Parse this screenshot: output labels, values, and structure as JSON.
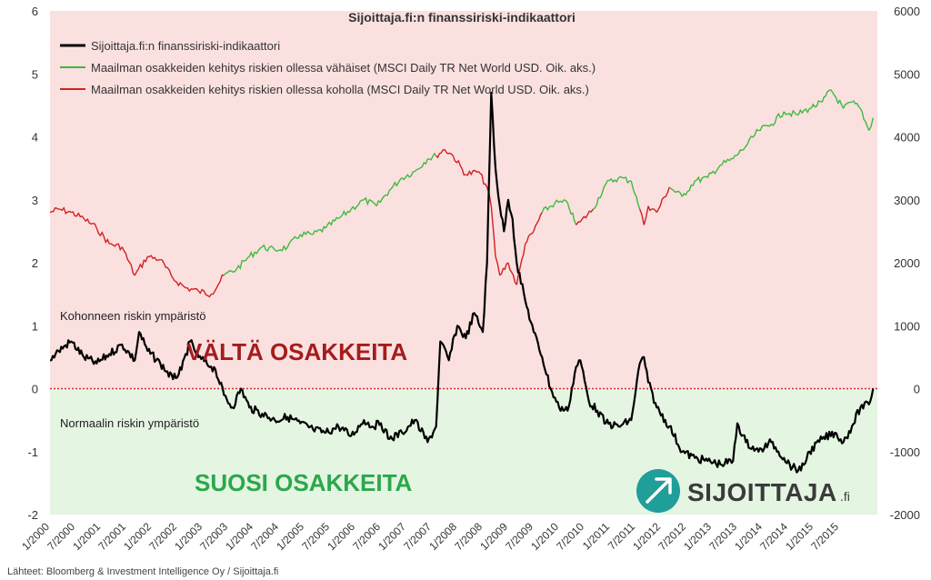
{
  "chart_data": {
    "type": "line",
    "title": "Sijoittaja.fi:n finanssiriski-indikaattori",
    "legend_position": "top-left",
    "grid": false,
    "x_ticks": [
      "1/2000",
      "7/2000",
      "1/2001",
      "7/2001",
      "1/2002",
      "7/2002",
      "1/2003",
      "7/2003",
      "1/2004",
      "7/2004",
      "1/2005",
      "7/2005",
      "1/2006",
      "7/2006",
      "1/2007",
      "7/2007",
      "1/2008",
      "7/2008",
      "1/2009",
      "7/2009",
      "1/2010",
      "7/2010",
      "1/2011",
      "7/2011",
      "1/2012",
      "7/2012",
      "1/2013",
      "7/2013",
      "1/2014",
      "7/2014",
      "1/2015",
      "7/2015"
    ],
    "xlim": [
      "2000-01",
      "2016-04"
    ],
    "y_left": {
      "ylim": [
        -2,
        6
      ],
      "ticks": [
        "-2",
        "-1",
        "0",
        "1",
        "2",
        "3",
        "4",
        "5",
        "6"
      ]
    },
    "y_right": {
      "ylim": [
        -2000,
        6000
      ],
      "ticks": [
        "-2000",
        "-1000",
        "0",
        "1000",
        "2000",
        "3000",
        "4000",
        "5000",
        "6000"
      ]
    },
    "zero_line": {
      "value": 0,
      "style": "dotted",
      "color": "#d03030"
    },
    "zones": [
      {
        "from": 0,
        "to": 6,
        "color": "#fbe0e0",
        "label": "Kohonneen riskin ympäristö",
        "big_label": "VÄLTÄ OSAKKEITA"
      },
      {
        "from": -2,
        "to": 0,
        "color": "#e4f5e2",
        "label": "Normaalin riskin ympäristö",
        "big_label": "SUOSI OSAKKEITA"
      }
    ],
    "series": [
      {
        "name": "Sijoittaja.fi:n finanssiriski-indikaattori",
        "color": "#000000",
        "axis": "left",
        "x": [
          "2000-01",
          "2000-03",
          "2000-06",
          "2000-09",
          "2000-12",
          "2001-03",
          "2001-06",
          "2001-09",
          "2001-10",
          "2001-12",
          "2002-03",
          "2002-06",
          "2002-08",
          "2002-10",
          "2002-12",
          "2003-03",
          "2003-04",
          "2003-06",
          "2003-08",
          "2003-10",
          "2003-12",
          "2004-03",
          "2004-06",
          "2004-09",
          "2004-12",
          "2005-03",
          "2005-06",
          "2005-09",
          "2005-12",
          "2006-03",
          "2006-05",
          "2006-07",
          "2006-09",
          "2006-12",
          "2007-03",
          "2007-06",
          "2007-08",
          "2007-09",
          "2007-11",
          "2008-01",
          "2008-03",
          "2008-05",
          "2008-07",
          "2008-08",
          "2008-09",
          "2008-10",
          "2008-11",
          "2008-12",
          "2009-01",
          "2009-02",
          "2009-03",
          "2009-05",
          "2009-07",
          "2009-09",
          "2009-11",
          "2010-01",
          "2010-03",
          "2010-05",
          "2010-06",
          "2010-08",
          "2010-10",
          "2010-12",
          "2011-03",
          "2011-06",
          "2011-08",
          "2011-09",
          "2011-10",
          "2011-12",
          "2012-03",
          "2012-06",
          "2012-09",
          "2012-12",
          "2013-03",
          "2013-06",
          "2013-07",
          "2013-09",
          "2013-12",
          "2014-03",
          "2014-06",
          "2014-08",
          "2014-10",
          "2014-12",
          "2015-03",
          "2015-06",
          "2015-08",
          "2015-10",
          "2015-12",
          "2016-02",
          "2016-03"
        ],
        "values": [
          0.45,
          0.6,
          0.75,
          0.5,
          0.4,
          0.55,
          0.7,
          0.45,
          0.9,
          0.6,
          0.4,
          0.15,
          0.3,
          0.75,
          0.5,
          0.35,
          0.3,
          -0.1,
          -0.3,
          0.0,
          -0.3,
          -0.4,
          -0.5,
          -0.45,
          -0.55,
          -0.65,
          -0.7,
          -0.6,
          -0.75,
          -0.5,
          -0.6,
          -0.55,
          -0.8,
          -0.7,
          -0.5,
          -0.85,
          -0.6,
          0.75,
          0.45,
          1.0,
          0.8,
          1.2,
          0.9,
          2.0,
          4.7,
          3.5,
          2.9,
          2.5,
          3.0,
          2.7,
          2.0,
          1.4,
          0.9,
          0.5,
          0.0,
          -0.3,
          -0.35,
          0.35,
          0.45,
          -0.2,
          -0.35,
          -0.55,
          -0.6,
          -0.5,
          0.4,
          0.5,
          0.1,
          -0.3,
          -0.6,
          -1.0,
          -1.1,
          -1.15,
          -1.2,
          -1.15,
          -0.55,
          -0.85,
          -1.0,
          -0.85,
          -1.1,
          -1.25,
          -1.3,
          -1.0,
          -0.8,
          -0.7,
          -0.85,
          -0.6,
          -0.3,
          -0.25,
          0.0
        ]
      },
      {
        "name": "Maailman osakkeiden kehitys riskien ollessa vähäiset (MSCI Daily TR Net World USD. Oik. aks.)",
        "color": "#3dbb3d",
        "axis": "right",
        "segments_by_regime": "green"
      },
      {
        "name": "Maailman osakkeiden kehitys riskien ollessa koholla (MSCI Daily TR Net World USD. Oik. aks.)",
        "color": "#d42020",
        "axis": "right",
        "segments_by_regime": "red"
      }
    ],
    "msci": {
      "x": [
        "2000-01",
        "2000-03",
        "2000-06",
        "2000-09",
        "2000-12",
        "2001-03",
        "2001-06",
        "2001-09",
        "2001-12",
        "2002-03",
        "2002-06",
        "2002-09",
        "2002-12",
        "2003-03",
        "2003-06",
        "2003-09",
        "2003-12",
        "2004-03",
        "2004-06",
        "2004-09",
        "2004-12",
        "2005-03",
        "2005-06",
        "2005-09",
        "2005-12",
        "2006-03",
        "2006-06",
        "2006-09",
        "2006-12",
        "2007-03",
        "2007-06",
        "2007-08",
        "2007-10",
        "2007-12",
        "2008-03",
        "2008-06",
        "2008-08",
        "2008-09",
        "2008-10",
        "2008-11",
        "2009-01",
        "2009-03",
        "2009-05",
        "2009-07",
        "2009-09",
        "2009-12",
        "2010-03",
        "2010-05",
        "2010-06",
        "2010-09",
        "2010-12",
        "2011-03",
        "2011-06",
        "2011-08",
        "2011-09",
        "2011-10",
        "2011-12",
        "2012-03",
        "2012-06",
        "2012-09",
        "2012-12",
        "2013-03",
        "2013-06",
        "2013-09",
        "2013-12",
        "2014-03",
        "2014-06",
        "2014-09",
        "2014-12",
        "2015-03",
        "2015-05",
        "2015-08",
        "2015-10",
        "2015-12",
        "2016-02",
        "2016-03"
      ],
      "values": [
        2800,
        2850,
        2800,
        2700,
        2550,
        2300,
        2250,
        1800,
        2100,
        2050,
        1750,
        1600,
        1550,
        1500,
        1800,
        1900,
        2100,
        2250,
        2200,
        2250,
        2450,
        2450,
        2550,
        2700,
        2850,
        3000,
        2900,
        3150,
        3350,
        3450,
        3650,
        3700,
        3800,
        3700,
        3400,
        3450,
        3200,
        2900,
        2100,
        1800,
        2000,
        1650,
        2300,
        2500,
        2800,
        2950,
        2950,
        2600,
        2650,
        2850,
        3250,
        3350,
        3300,
        2850,
        2600,
        2900,
        2800,
        3200,
        3050,
        3300,
        3350,
        3550,
        3650,
        3850,
        4100,
        4200,
        4400,
        4350,
        4450,
        4550,
        4750,
        4450,
        4550,
        4450,
        4100,
        4300
      ],
      "regime": [
        "red",
        "red",
        "red",
        "red",
        "red",
        "red",
        "red",
        "red",
        "red",
        "red",
        "red",
        "red",
        "red",
        "red",
        "green",
        "green",
        "green",
        "green",
        "green",
        "green",
        "green",
        "green",
        "green",
        "green",
        "green",
        "green",
        "green",
        "green",
        "green",
        "green",
        "green",
        "red",
        "red",
        "red",
        "red",
        "red",
        "red",
        "red",
        "red",
        "red",
        "red",
        "red",
        "red",
        "red",
        "green",
        "green",
        "green",
        "red",
        "red",
        "green",
        "green",
        "green",
        "green",
        "red",
        "red",
        "red",
        "red",
        "green",
        "green",
        "green",
        "green",
        "green",
        "green",
        "green",
        "green",
        "green",
        "green",
        "green",
        "green",
        "green",
        "green",
        "green",
        "green",
        "green",
        "green",
        "green"
      ]
    }
  },
  "labels": {
    "title": "Sijoittaja.fi:n finanssiriski-indikaattori",
    "legend": [
      "Sijoittaja.fi:n finanssiriski-indikaattori",
      "Maailman osakkeiden kehitys riskien ollessa vähäiset (MSCI Daily TR Net World USD. Oik. aks.)",
      "Maailman osakkeiden kehitys riskien ollessa koholla (MSCI Daily TR Net World USD. Oik. aks.)"
    ],
    "zone_high": "Kohonneen riskin ympäristö",
    "zone_low": "Normaalin riskin ympäristö",
    "avoid": "VÄLTÄ OSAKKEITA",
    "favor": "SUOSI OSAKKEITA",
    "brand": "SIJOITTAJA",
    "brand_suffix": ".fi",
    "source": "Lähteet: Bloomberg & Investment Intelligence Oy / Sijoittaja.fi"
  },
  "colors": {
    "zone_high": "#fbe0e0",
    "zone_low": "#e4f5e2",
    "indicator": "#000000",
    "msci_green": "#3dbb3d",
    "msci_red": "#d42020",
    "brand_accent": "#1f9e9a"
  },
  "icons": {
    "brand_logo": "arrow-up-right-circle-icon"
  }
}
